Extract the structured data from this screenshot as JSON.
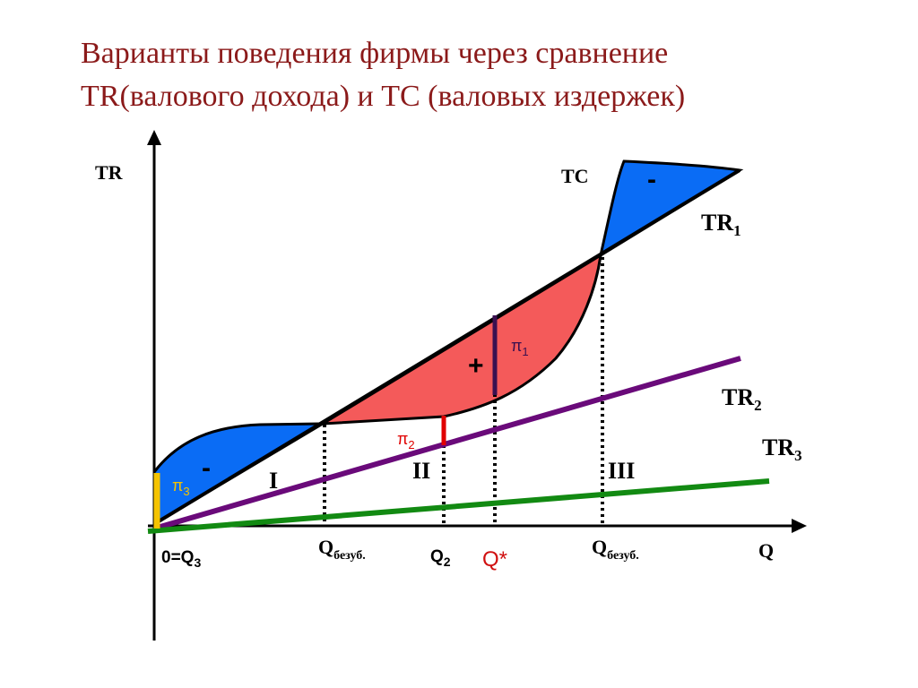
{
  "title": {
    "line1": "Варианты поведения фирмы  через сравнение",
    "line2": "TR(валового дохода)  и TC (валовых издержек)"
  },
  "axes": {
    "y_label": "TR",
    "x_label": "Q",
    "origin": {
      "main": "0=Q",
      "sub": "3"
    }
  },
  "curves": {
    "tc": "TC",
    "tr1": {
      "main": "TR",
      "sub": "1"
    },
    "tr2": {
      "main": "TR",
      "sub": "2"
    },
    "tr3": {
      "main": "TR",
      "sub": "3"
    }
  },
  "x_marks": {
    "q_bez_1": {
      "main": "Q",
      "sub": "безуб."
    },
    "q2": {
      "main": "Q",
      "sub": "2"
    },
    "q_star": "Q*",
    "q_bez_2": {
      "main": "Q",
      "sub": "безуб."
    }
  },
  "profits": {
    "pi1": {
      "main": "π",
      "sub": "1"
    },
    "pi2": {
      "main": "π",
      "sub": "2"
    },
    "pi3": {
      "main": "π",
      "sub": "3"
    }
  },
  "signs": {
    "plus": "+",
    "minus_left": "-",
    "minus_right": "-"
  },
  "zones": {
    "z1": "I",
    "z2": "II",
    "z3": "III"
  }
}
